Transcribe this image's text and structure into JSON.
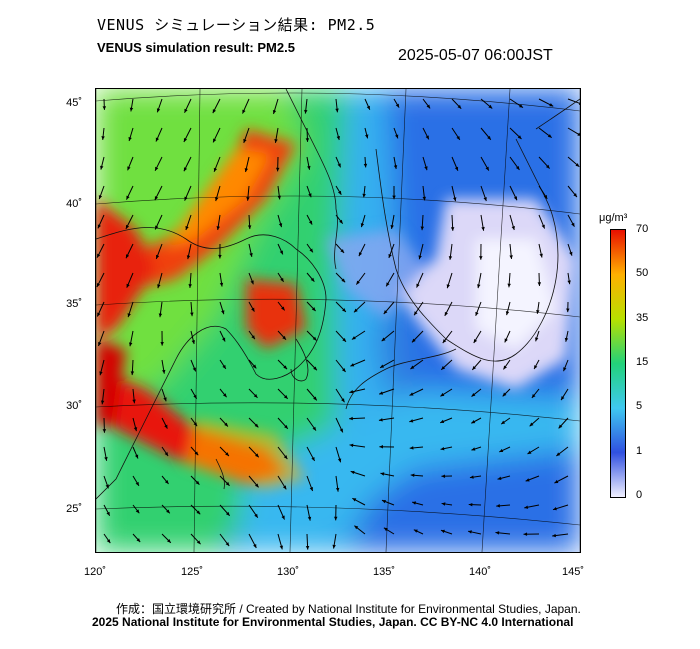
{
  "header": {
    "title_jp": "VENUS シミュレーション結果: PM2.5",
    "title_en": "VENUS simulation result: PM2.5",
    "timestamp": "2025-05-07 06:00JST"
  },
  "map": {
    "lat_labels": [
      "45˚",
      "40˚",
      "35˚",
      "30˚",
      "25˚"
    ],
    "lon_labels": [
      "120˚",
      "125˚",
      "130˚",
      "135˚",
      "140˚",
      "145˚"
    ],
    "field": "PM2.5 concentration with surface wind vectors"
  },
  "colorbar": {
    "unit": "μg/m³",
    "ticks": [
      "70",
      "50",
      "35",
      "15",
      "5",
      "1",
      "0"
    ],
    "colors": [
      "#f0f0ff",
      "#3050e0",
      "#3fc8f0",
      "#22d27a",
      "#b8e000",
      "#ffb000",
      "#e81000"
    ]
  },
  "footer": {
    "credit": "作成：国立環境研究所 / Created by National Institute for Environmental Studies, Japan.",
    "copyright": "2025 National Institute for Environmental Studies, Japan. CC BY-NC 4.0 International"
  }
}
